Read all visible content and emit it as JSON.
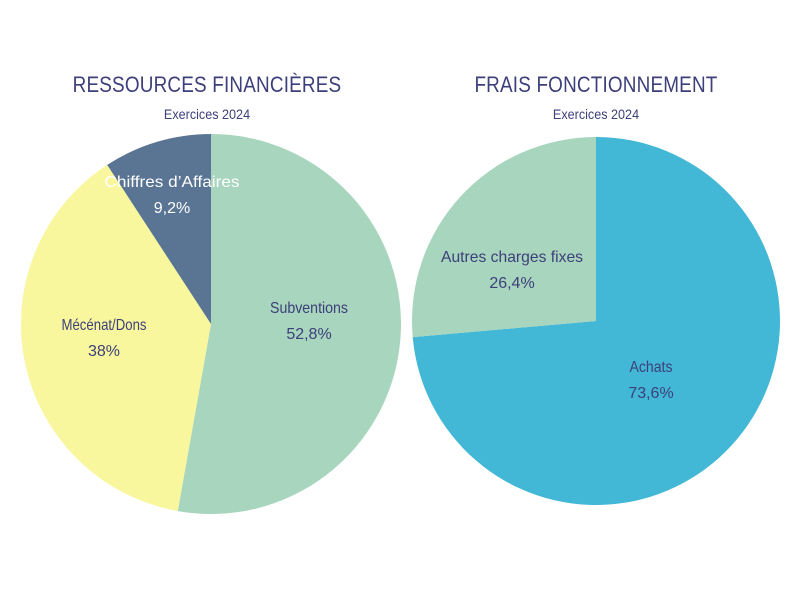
{
  "chart_data": [
    {
      "type": "pie",
      "title": "RESSOURCES FINANCIÈRES",
      "subtitle": "Exercices 2024",
      "slices": [
        {
          "label": "Subventions",
          "value_label": "52,8%",
          "value": 52.8,
          "color": "#a8d5bd"
        },
        {
          "label": "Mécénat/Dons",
          "value_label": "38%",
          "value": 38.0,
          "color": "#f8f79e"
        },
        {
          "label": "Chiffres d’Affaires",
          "value_label": "9,2%",
          "value": 9.2,
          "color": "#5a7593"
        }
      ]
    },
    {
      "type": "pie",
      "title": "FRAIS FONCTIONNEMENT",
      "subtitle": "Exercices 2024",
      "slices": [
        {
          "label": "Achats",
          "value_label": "73,6%",
          "value": 73.6,
          "color": "#42b7d6"
        },
        {
          "label": "Autres charges fixes",
          "value_label": "26,4%",
          "value": 26.4,
          "color": "#a8d5bd"
        }
      ]
    }
  ]
}
